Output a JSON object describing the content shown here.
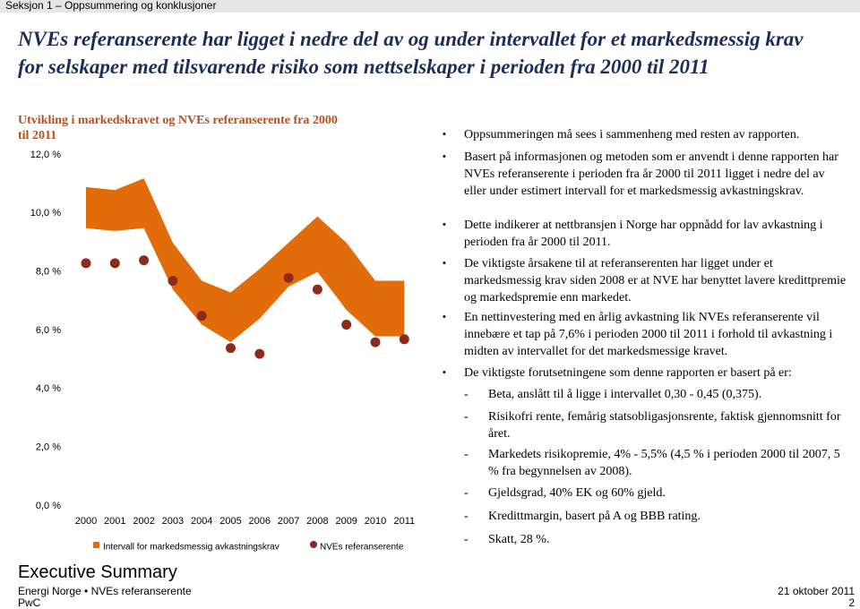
{
  "header": {
    "section": "Seksjon 1 – Oppsummering og konklusjoner",
    "title": "NVEs referanserente har ligget i nedre del av og under intervallet for et markedsmessig krav for selskaper med tilsvarende risiko som nettselskaper i perioden fra 2000 til 2011"
  },
  "chart_data": {
    "type": "range-scatter",
    "title": "Utvikling i markedskravet og NVEs referanserente fra 2000 til 2011",
    "categories": [
      "2000",
      "2001",
      "2002",
      "2003",
      "2004",
      "2005",
      "2006",
      "2007",
      "2008",
      "2009",
      "2010",
      "2011"
    ],
    "series": [
      {
        "name": "Intervall for markedsmessig avkastningskrav",
        "color": "#e36c0a",
        "low": [
          9.5,
          9.4,
          9.5,
          7.4,
          6.2,
          5.6,
          6.4,
          7.5,
          8.0,
          6.7,
          5.8,
          5.8
        ],
        "values": [
          10.9,
          10.8,
          11.2,
          9.0,
          7.7,
          7.3,
          8.1,
          9.0,
          9.9,
          9.0,
          7.7,
          7.7
        ]
      },
      {
        "name": "NVEs referanserente",
        "color": "#8c2b1c",
        "values": [
          8.3,
          8.3,
          8.4,
          7.7,
          6.5,
          5.4,
          5.2,
          7.8,
          7.4,
          6.2,
          5.6,
          5.7
        ]
      }
    ],
    "ylim": [
      0,
      12
    ],
    "yticks": [
      {
        "value": 0,
        "label": "0,0 %"
      },
      {
        "value": 2,
        "label": "2,0 %"
      },
      {
        "value": 4,
        "label": "4,0 %"
      },
      {
        "value": 6,
        "label": "6,0 %"
      },
      {
        "value": 8,
        "label": "8,0 %"
      },
      {
        "value": 10,
        "label": "10,0 %"
      },
      {
        "value": 12,
        "label": "12,0 %"
      }
    ],
    "grid": false
  },
  "bullets": [
    "Oppsummeringen må sees i sammenheng med resten av rapporten.",
    "Basert på informasjonen og metoden som er anvendt i denne rapporten har NVEs referanserente i perioden fra år 2000 til 2011 ligget i nedre del av eller under estimert intervall for et markedsmessig avkastningskrav.",
    "Dette indikerer at nettbransjen i Norge har oppnådd for lav avkastning i perioden fra år 2000 til 2011.",
    "De viktigste årsakene til at referanserenten har ligget under et markedsmessig krav siden 2008 er at NVE har benyttet lavere kredittpremie og markedspremie enn markedet.",
    "En nettinvestering med en årlig avkastning lik NVEs referanserente vil innebære et tap på 7,6% i perioden 2000 til 2011 i forhold til avkastning i midten av intervallet for det markedsmessige kravet.",
    "De viktigste forutsetningene som denne rapporten er basert på er:"
  ],
  "sub_bullets": [
    "Beta, anslått til å ligge i intervallet 0,30 - 0,45 (0,375).",
    "Risikofri rente, femårig statsobligasjonsrente, faktisk gjennomsnitt for året.",
    "Markedets risikopremie, 4% - 5,5% (4,5 % i perioden 2000 til 2007, 5 % fra begynnelsen av 2008).",
    "Gjeldsgrad, 40% EK og 60% gjeld.",
    "Kredittmargin, basert på A og BBB rating.",
    "Skatt, 28 %."
  ],
  "footer": {
    "heading": "Executive Summary",
    "line1": "Energi Norge • NVEs referanserente",
    "line2": "PwC",
    "date": "21 oktober 2011",
    "page": "2"
  }
}
